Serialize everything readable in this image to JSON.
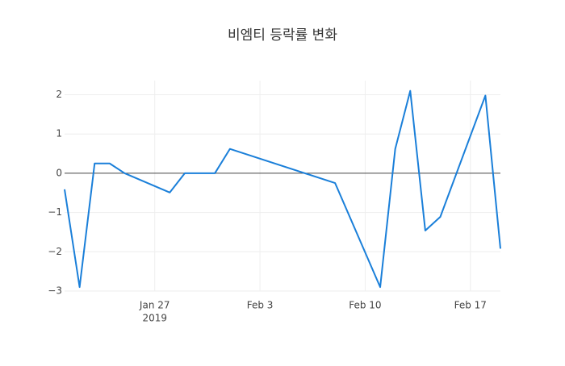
{
  "chart_data": {
    "type": "line",
    "title": "비엠티 등락률 변화",
    "x": [
      "2019-01-21",
      "2019-01-22",
      "2019-01-23",
      "2019-01-24",
      "2019-01-25",
      "2019-01-28",
      "2019-01-29",
      "2019-01-30",
      "2019-01-31",
      "2019-02-01",
      "2019-02-08",
      "2019-02-11",
      "2019-02-12",
      "2019-02-13",
      "2019-02-14",
      "2019-02-15",
      "2019-02-18",
      "2019-02-19"
    ],
    "series": [
      {
        "color": "#1a7fd9",
        "values": [
          -0.41,
          -2.9,
          0.25,
          0.25,
          0.0,
          -0.49,
          0.0,
          0.0,
          0.0,
          0.62,
          -0.25,
          -2.9,
          0.62,
          2.1,
          -1.46,
          -1.11,
          1.98,
          -1.92
        ]
      }
    ],
    "xlim": [
      "2019-01-21",
      "2019-02-19"
    ],
    "xticks": [
      {
        "value": "2019-01-27",
        "label": "Jan 27",
        "sublabel": "2019"
      },
      {
        "value": "2019-02-03",
        "label": "Feb 3"
      },
      {
        "value": "2019-02-10",
        "label": "Feb 10"
      },
      {
        "value": "2019-02-17",
        "label": "Feb 17"
      }
    ],
    "ylim": [
      -3.0,
      2.36
    ],
    "yticks": [
      {
        "value": -3,
        "label": "−3"
      },
      {
        "value": -2,
        "label": "−2"
      },
      {
        "value": -1,
        "label": "−1"
      },
      0,
      1,
      2
    ],
    "grid": true,
    "zero_line": true
  }
}
